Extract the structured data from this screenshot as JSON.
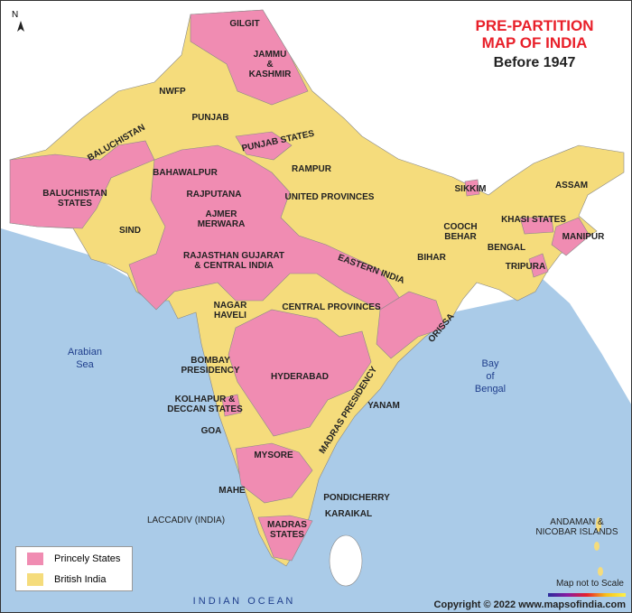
{
  "title": {
    "line1": "PRE-PARTITION",
    "line2": "MAP OF INDIA",
    "subtitle": "Before 1947"
  },
  "colors": {
    "princely": "#f08cb2",
    "british": "#f5dc7c",
    "sea": "#aacbe8",
    "outside_land": "#ffffff",
    "title": "#e8202a"
  },
  "north": "N",
  "legend": [
    {
      "label": "Princely States",
      "color": "#f08cb2"
    },
    {
      "label": "British India",
      "color": "#f5dc7c"
    }
  ],
  "regions": [
    "GILGIT",
    "JAMMU",
    "&",
    "KASHMIR",
    "NWFP",
    "PUNJAB",
    "BALUCHISTAN",
    "PUNJAB STATES",
    "RAMPUR",
    "BAHAWALPUR",
    "BALUCHISTAN",
    "STATES",
    "RAJPUTANA",
    "AJMER",
    "MERWARA",
    "UNITED PROVINCES",
    "SIND",
    "RAJASTHAN GUJARAT",
    "& CENTRAL INDIA",
    "EASTERN INDIA",
    "SIKKIM",
    "ASSAM",
    "KHASI STATES",
    "COOCH",
    "BEHAR",
    "BENGAL",
    "MANIPUR",
    "BIHAR",
    "TRIPURA",
    "NAGAR",
    "HAVELI",
    "CENTRAL PROVINCES",
    "ORISSA",
    "BOMBAY",
    "PRESIDENCY",
    "HYDERABAD",
    "MADRAS PRESIDENCY",
    "KOLHAPUR &",
    "DECCAN STATES",
    "YANAM",
    "GOA",
    "MYSORE",
    "MAHE",
    "PONDICHERRY",
    "KARAIKAL",
    "LACCADIV (INDIA)",
    "MADRAS",
    "STATES",
    "ANDAMAN &",
    "NICOBAR ISLANDS"
  ],
  "seas": {
    "arabian": [
      "Arabian",
      "Sea"
    ],
    "bay": [
      "Bay",
      "of",
      "Bengal"
    ],
    "indian": "I N D I A N   O C E A N"
  },
  "scale_note": "Map not to Scale",
  "copyright": "Copyright © 2022 www.mapsofindia.com"
}
